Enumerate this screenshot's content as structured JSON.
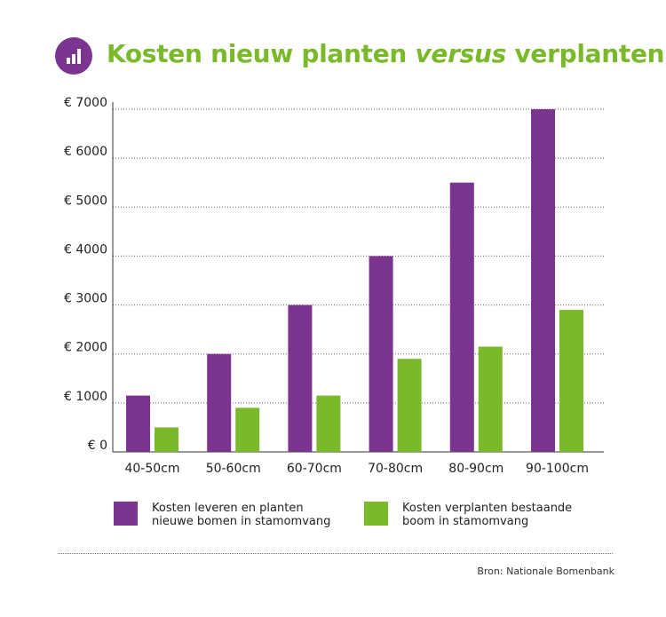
{
  "title": {
    "part1": "Kosten nieuw planten ",
    "italic": "versus",
    "part2": " verplanten",
    "icon": "bar-chart-icon"
  },
  "colors": {
    "purple": "#7b3590",
    "green": "#7ab929",
    "title": "#7ab929"
  },
  "chart_data": {
    "type": "bar",
    "title": "Kosten nieuw planten versus verplanten",
    "categories": [
      "40-50cm",
      "50-60cm",
      "60-70cm",
      "70-80cm",
      "80-90cm",
      "90-100cm"
    ],
    "series": [
      {
        "name": "Kosten leveren en planten nieuwe bomen in stamomvang",
        "color": "#7b3590",
        "values": [
          1150,
          2000,
          3000,
          4000,
          5500,
          7000
        ]
      },
      {
        "name": "Kosten verplanten bestaande boom in stamomvang",
        "color": "#7ab929",
        "values": [
          500,
          900,
          1150,
          1900,
          2150,
          2900
        ]
      }
    ],
    "yticks": [
      0,
      1000,
      2000,
      3000,
      4000,
      5000,
      6000,
      7000
    ],
    "ytick_labels": [
      "€ 0",
      "€ 1000",
      "€ 2000",
      "€ 3000",
      "€ 4000",
      "€ 5000",
      "€ 6000",
      "€ 7000"
    ],
    "ylim": [
      0,
      7000
    ],
    "xlabel": "",
    "ylabel": "",
    "grid": true,
    "legend_placement": "bottom"
  },
  "legend": [
    {
      "line1": "Kosten leveren en planten",
      "line2": "nieuwe bomen in stamomvang"
    },
    {
      "line1": "Kosten verplanten bestaande",
      "line2": "boom in stamomvang"
    }
  ],
  "source": "Bron: Nationale Bomenbank"
}
